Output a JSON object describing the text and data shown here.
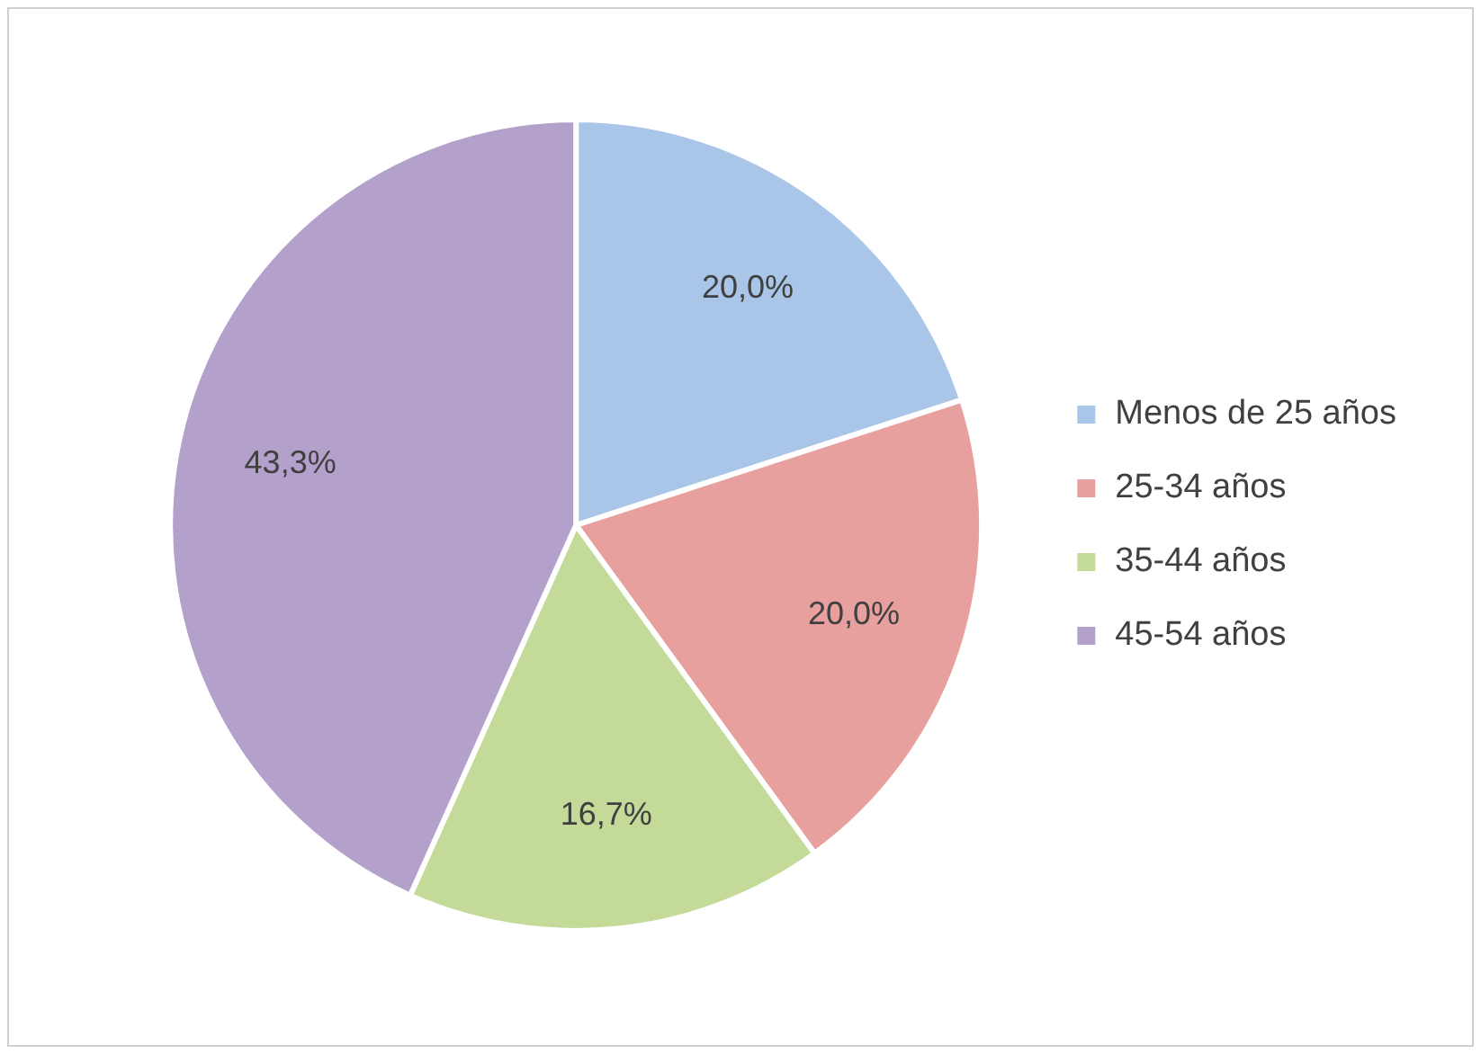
{
  "chart_data": {
    "type": "pie",
    "categories": [
      "Menos de 25 años",
      "25-34 años",
      "35-44 años",
      "45-54 años"
    ],
    "values": [
      20.0,
      20.0,
      16.7,
      43.3
    ],
    "value_labels": [
      "20,0%",
      "20,0%",
      "16,7%",
      "43,3%"
    ],
    "colors": [
      "#a9c6e8",
      "#e8a09e",
      "#c3da98",
      "#b3a1cc"
    ],
    "legend": "right"
  }
}
